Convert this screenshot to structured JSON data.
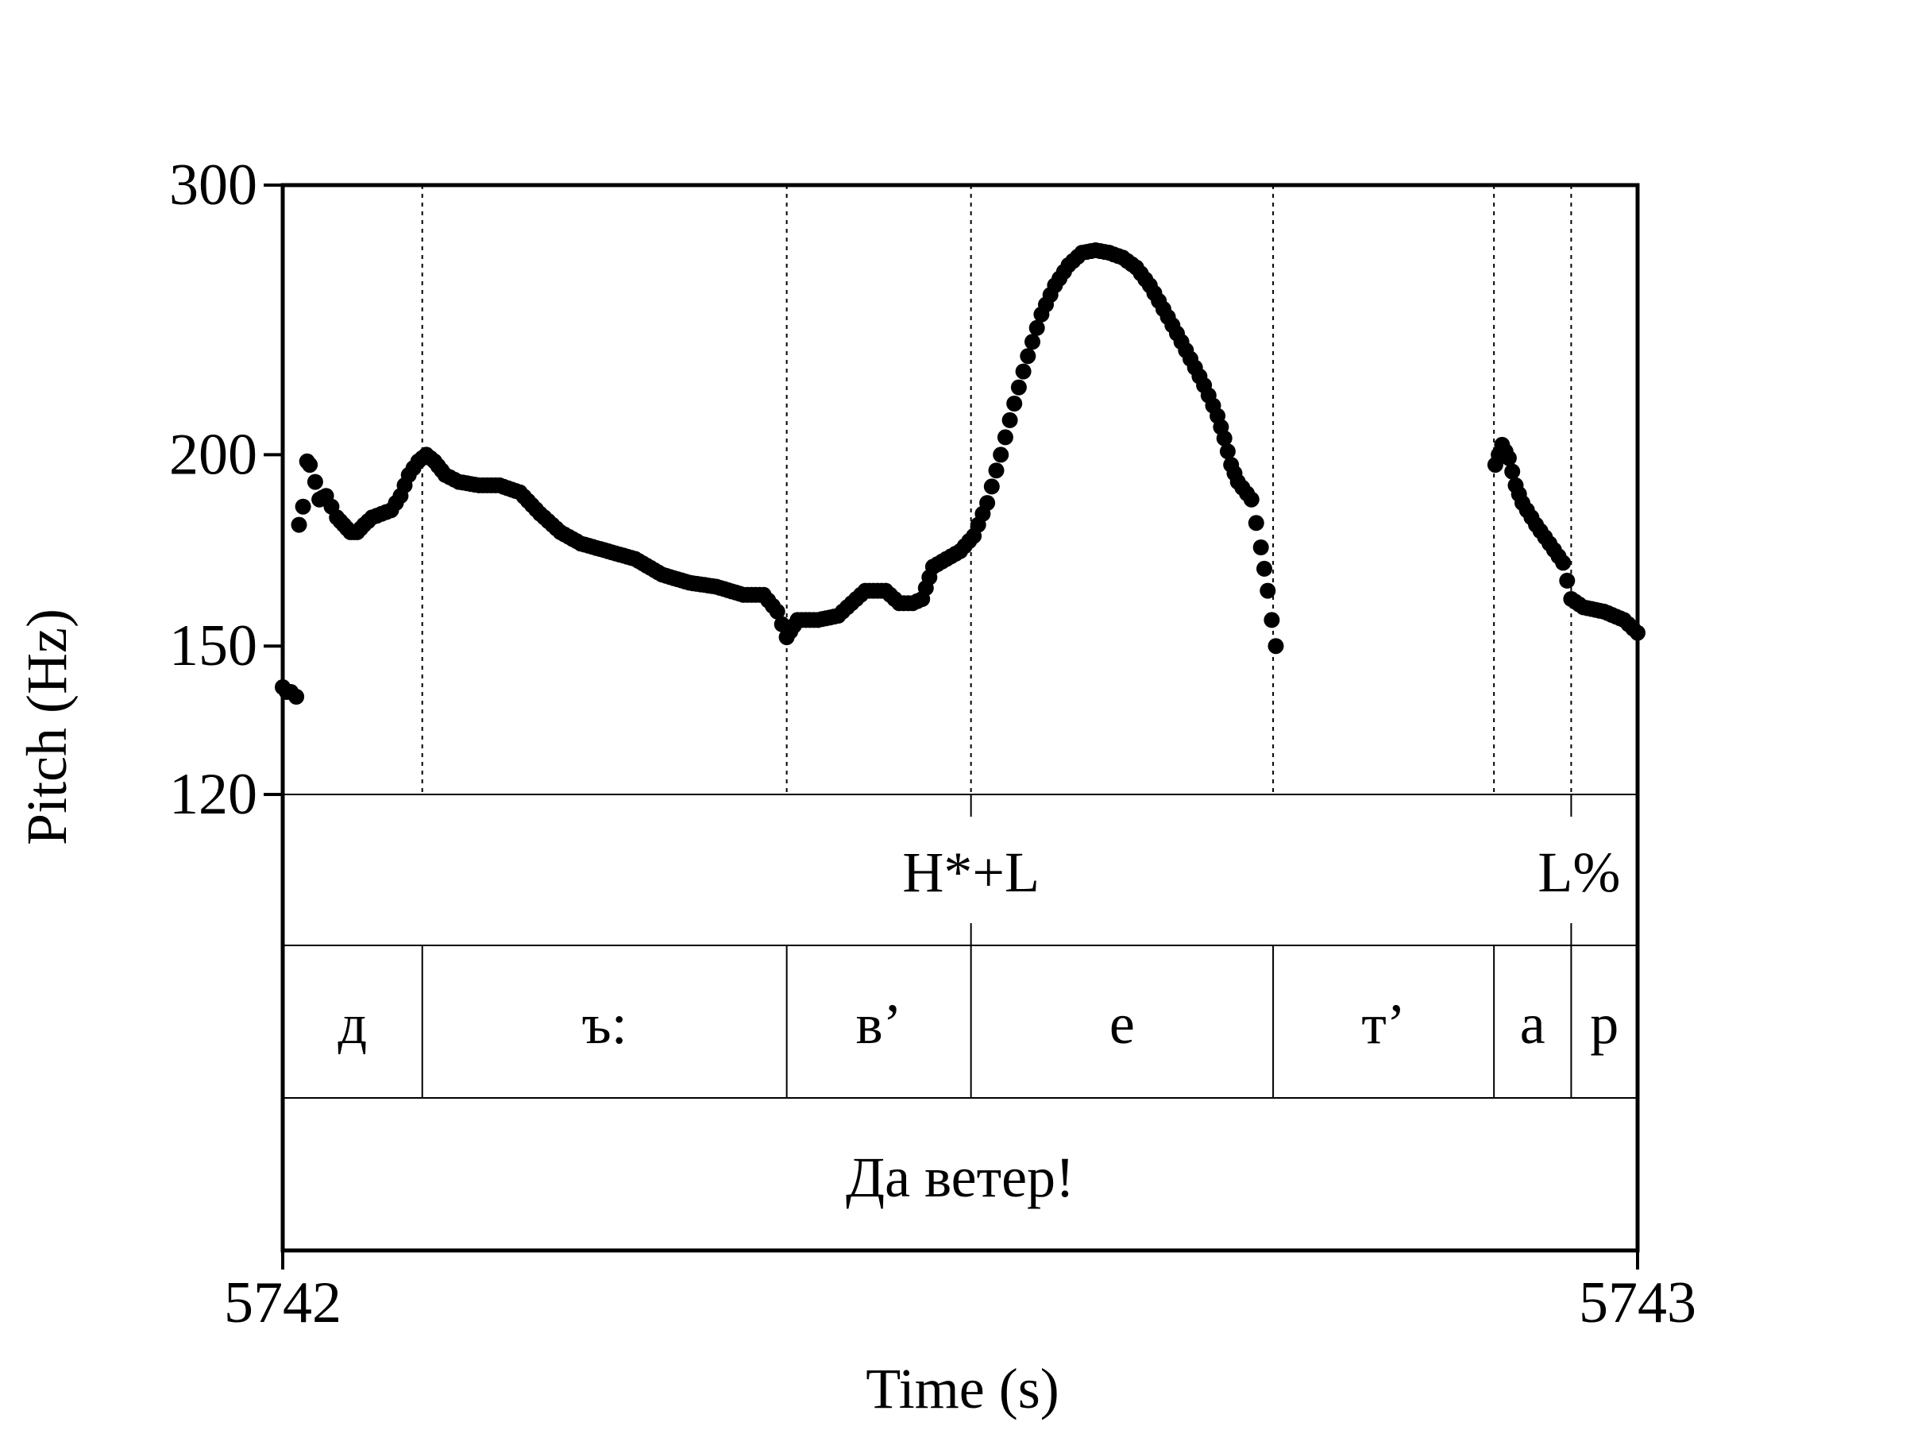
{
  "chart_data": {
    "type": "scatter",
    "xlabel": "Time (s)",
    "ylabel": "Pitch (Hz)",
    "xlim": [
      5742,
      5743
    ],
    "ylim": [
      120,
      300
    ],
    "y_scale": "log",
    "x_ticks": [
      "5742",
      "5743"
    ],
    "y_ticks": [
      {
        "value": 300,
        "label": "300"
      },
      {
        "value": 200,
        "label": "200"
      },
      {
        "value": 150,
        "label": "150"
      },
      {
        "value": 120,
        "label": "120"
      }
    ],
    "boundaries": [
      5742.103,
      5742.372,
      5742.508,
      5742.731,
      5742.894,
      5742.951
    ],
    "pitch_points": [
      [
        5742.0,
        141
      ],
      [
        5742.003,
        140
      ],
      [
        5742.006,
        140
      ],
      [
        5742.01,
        139
      ],
      [
        5742.012,
        180
      ],
      [
        5742.015,
        185
      ],
      [
        5742.018,
        198
      ],
      [
        5742.02,
        197
      ],
      [
        5742.024,
        192
      ],
      [
        5742.027,
        187
      ],
      [
        5742.032,
        188
      ],
      [
        5742.036,
        185
      ],
      [
        5742.04,
        182
      ],
      [
        5742.045,
        180
      ],
      [
        5742.05,
        178
      ],
      [
        5742.055,
        178
      ],
      [
        5742.06,
        180
      ],
      [
        5742.066,
        182
      ],
      [
        5742.073,
        183
      ],
      [
        5742.08,
        184
      ],
      [
        5742.087,
        188
      ],
      [
        5742.093,
        194
      ],
      [
        5742.1,
        198
      ],
      [
        5742.106,
        200
      ],
      [
        5742.112,
        198
      ],
      [
        5742.12,
        194
      ],
      [
        5742.13,
        192
      ],
      [
        5742.145,
        191
      ],
      [
        5742.16,
        191
      ],
      [
        5742.175,
        189
      ],
      [
        5742.19,
        183
      ],
      [
        5742.205,
        178
      ],
      [
        5742.22,
        175
      ],
      [
        5742.24,
        173
      ],
      [
        5742.26,
        171
      ],
      [
        5742.28,
        167
      ],
      [
        5742.3,
        165
      ],
      [
        5742.32,
        164
      ],
      [
        5742.34,
        162
      ],
      [
        5742.355,
        162
      ],
      [
        5742.365,
        158
      ],
      [
        5742.372,
        152
      ],
      [
        5742.38,
        156
      ],
      [
        5742.395,
        156
      ],
      [
        5742.41,
        157
      ],
      [
        5742.42,
        160
      ],
      [
        5742.43,
        163
      ],
      [
        5742.445,
        163
      ],
      [
        5742.455,
        160
      ],
      [
        5742.465,
        160
      ],
      [
        5742.472,
        161
      ],
      [
        5742.48,
        169
      ],
      [
        5742.49,
        171
      ],
      [
        5742.5,
        173
      ],
      [
        5742.51,
        177
      ],
      [
        5742.52,
        186
      ],
      [
        5742.53,
        200
      ],
      [
        5742.54,
        216
      ],
      [
        5742.55,
        232
      ],
      [
        5742.56,
        247
      ],
      [
        5742.57,
        258
      ],
      [
        5742.58,
        266
      ],
      [
        5742.59,
        271
      ],
      [
        5742.6,
        272
      ],
      [
        5742.61,
        271
      ],
      [
        5742.62,
        269
      ],
      [
        5742.63,
        265
      ],
      [
        5742.64,
        258
      ],
      [
        5742.65,
        249
      ],
      [
        5742.66,
        240
      ],
      [
        5742.67,
        231
      ],
      [
        5742.68,
        222
      ],
      [
        5742.69,
        212
      ],
      [
        5742.695,
        205
      ],
      [
        5742.7,
        197
      ],
      [
        5742.705,
        192
      ],
      [
        5742.715,
        187
      ],
      [
        5742.722,
        174
      ],
      [
        5742.727,
        163
      ],
      [
        5742.73,
        156
      ],
      [
        5742.733,
        150
      ],
      [
        5742.895,
        197
      ],
      [
        5742.9,
        203
      ],
      [
        5742.905,
        199
      ],
      [
        5742.91,
        191
      ],
      [
        5742.915,
        186
      ],
      [
        5742.925,
        180
      ],
      [
        5742.935,
        175
      ],
      [
        5742.945,
        170
      ],
      [
        5742.951,
        161
      ],
      [
        5742.96,
        159
      ],
      [
        5742.975,
        158
      ],
      [
        5742.99,
        156
      ],
      [
        5743.0,
        153
      ]
    ],
    "tiers": {
      "tones": [
        {
          "label": "H*+L",
          "time": 5742.508
        },
        {
          "label": "L%",
          "time": 5742.951
        }
      ],
      "segments": [
        "д",
        "ъ:",
        "в’",
        "е",
        "т’",
        "а",
        "р"
      ],
      "phrase": "Да ветер!"
    }
  }
}
